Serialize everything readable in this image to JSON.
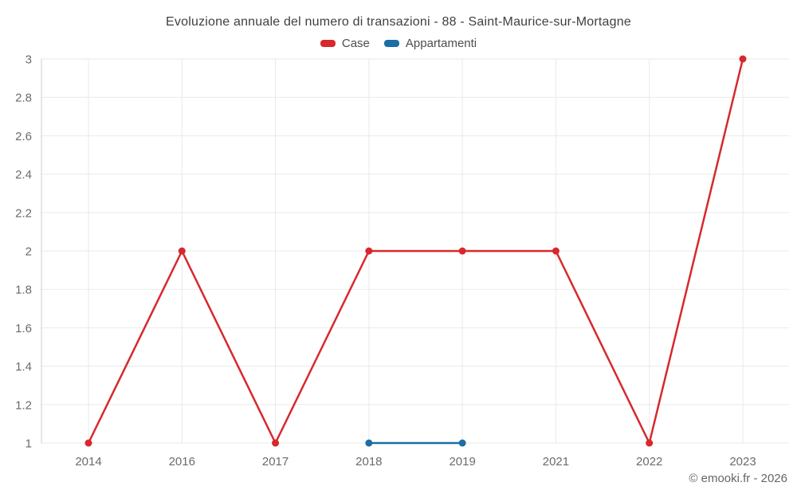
{
  "header": {
    "title": "Evoluzione annuale del numero di transazioni - 88 - Saint-Maurice-sur-Mortagne"
  },
  "watermark": "© emooki.fr - 2026",
  "colors": {
    "case_red": "#d7282d",
    "appartamenti_blue": "#1c6ea4",
    "grid": "#e9e9e9",
    "axis": "#cccccc",
    "tick_text": "#6b6b6b",
    "title_text": "#404040",
    "legend_text": "#4d4d4d",
    "watermark_text": "#666666"
  },
  "chart_data": {
    "type": "line",
    "title": "Evoluzione annuale del numero di transazioni - 88 - Saint-Maurice-sur-Mortagne",
    "categories": [
      "2014",
      "2016",
      "2017",
      "2018",
      "2019",
      "2021",
      "2022",
      "2023"
    ],
    "series": [
      {
        "name": "Case",
        "color": "#d7282d",
        "values": [
          1,
          2,
          1,
          2,
          2,
          2,
          1,
          3
        ]
      },
      {
        "name": "Appartamenti",
        "color": "#1c6ea4",
        "values": [
          null,
          null,
          null,
          1,
          1,
          null,
          null,
          null
        ]
      }
    ],
    "xlabel": "",
    "ylabel": "",
    "ylim": [
      1,
      3
    ],
    "y_ticks": [
      1,
      1.2,
      1.4,
      1.6,
      1.8,
      2,
      2.2,
      2.4,
      2.6,
      2.8,
      3
    ],
    "y_tick_labels": [
      "1",
      "1.2",
      "1.4",
      "1.6",
      "1.8",
      "2",
      "2.2",
      "2.4",
      "2.6",
      "2.8",
      "3"
    ],
    "grid": true,
    "legend_position": "top",
    "marker": "circle"
  }
}
